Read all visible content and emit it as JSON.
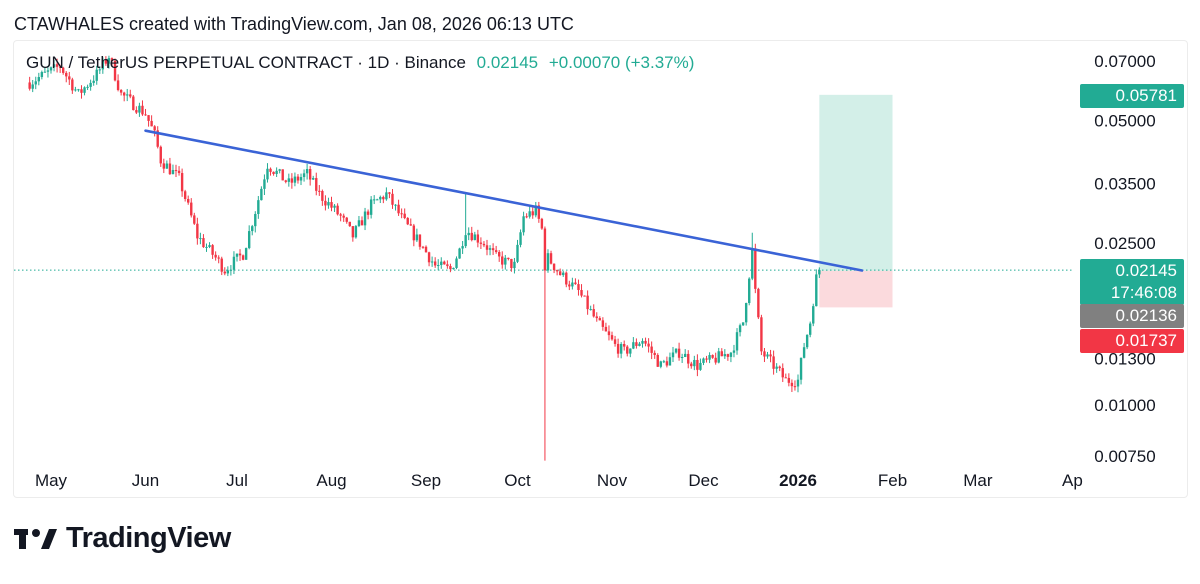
{
  "header": {
    "text": "CTAWHALES created with TradingView.com, Jan 08, 2026 06:13 UTC"
  },
  "symbol": {
    "title": "GUN / TetherUS PERPETUAL CONTRACT · 1D · Binance",
    "price": "0.02145",
    "change": "+0.00070 (+3.37%)"
  },
  "badges": {
    "target": "0.05781",
    "last_price": "0.02145",
    "countdown": "17:46:08",
    "entry": "0.02136",
    "stop": "0.01737"
  },
  "footer": {
    "brand": "TradingView"
  },
  "colors": {
    "up": "#22ab94",
    "down": "#f23645",
    "trendline": "#3a63d6",
    "profit_zone": "#d3efe8",
    "loss_zone": "#fbdadd",
    "entry_badge": "#808080"
  },
  "chart_data": {
    "type": "candlestick",
    "log_scale": true,
    "y_ticks": [
      "0.07000",
      "0.05000",
      "0.03500",
      "0.02500",
      "0.01300",
      "0.01000",
      "0.00750"
    ],
    "x_ticks": [
      "May",
      "Jun",
      "Jul",
      "Aug",
      "Sep",
      "Oct",
      "Nov",
      "Dec",
      "2026",
      "Feb",
      "Mar",
      "Ap"
    ],
    "x_tick_dates": [
      "2025-05-01",
      "2025-06-01",
      "2025-07-01",
      "2025-08-01",
      "2025-09-01",
      "2025-10-01",
      "2025-11-01",
      "2025-12-01",
      "2026-01-01",
      "2026-02-01",
      "2026-03-01",
      "2026-04-01"
    ],
    "close_path": [
      [
        "2025-04-24",
        0.062
      ],
      [
        "2025-05-04",
        0.068
      ],
      [
        "2025-05-10",
        0.058
      ],
      [
        "2025-05-16",
        0.065
      ],
      [
        "2025-05-20",
        0.072
      ],
      [
        "2025-05-24",
        0.058
      ],
      [
        "2025-06-01",
        0.052
      ],
      [
        "2025-06-04",
        0.046
      ],
      [
        "2025-06-06",
        0.04
      ],
      [
        "2025-06-12",
        0.036
      ],
      [
        "2025-06-18",
        0.026
      ],
      [
        "2025-06-24",
        0.023
      ],
      [
        "2025-06-27",
        0.0215
      ],
      [
        "2025-07-03",
        0.0235
      ],
      [
        "2025-07-07",
        0.03
      ],
      [
        "2025-07-11",
        0.039
      ],
      [
        "2025-07-18",
        0.035
      ],
      [
        "2025-07-24",
        0.037
      ],
      [
        "2025-07-28",
        0.033
      ],
      [
        "2025-08-04",
        0.029
      ],
      [
        "2025-08-08",
        0.026
      ],
      [
        "2025-08-14",
        0.031
      ],
      [
        "2025-08-19",
        0.033
      ],
      [
        "2025-08-25",
        0.028
      ],
      [
        "2025-08-30",
        0.025
      ],
      [
        "2025-09-04",
        0.022
      ],
      [
        "2025-09-09",
        0.0215
      ],
      [
        "2025-09-12",
        0.024
      ],
      [
        "2025-09-14",
        0.027
      ],
      [
        "2025-09-20",
        0.025
      ],
      [
        "2025-09-24",
        0.023
      ],
      [
        "2025-09-30",
        0.022
      ],
      [
        "2025-10-03",
        0.029
      ],
      [
        "2025-10-07",
        0.03
      ],
      [
        "2025-10-09",
        0.027
      ],
      [
        "2025-10-10",
        0.022
      ],
      [
        "2025-10-11",
        0.023
      ],
      [
        "2025-10-15",
        0.021
      ],
      [
        "2025-10-21",
        0.019
      ],
      [
        "2025-10-27",
        0.016
      ],
      [
        "2025-11-02",
        0.014
      ],
      [
        "2025-11-05",
        0.0135
      ],
      [
        "2025-11-11",
        0.0145
      ],
      [
        "2025-11-17",
        0.0125
      ],
      [
        "2025-11-23",
        0.0135
      ],
      [
        "2025-11-29",
        0.0125
      ],
      [
        "2025-12-05",
        0.013
      ],
      [
        "2025-12-10",
        0.0135
      ],
      [
        "2025-12-14",
        0.016
      ],
      [
        "2025-12-16",
        0.021
      ],
      [
        "2025-12-17",
        0.024
      ],
      [
        "2025-12-18",
        0.019
      ],
      [
        "2025-12-20",
        0.0135
      ],
      [
        "2025-12-24",
        0.0125
      ],
      [
        "2025-12-28",
        0.0115
      ],
      [
        "2026-01-01",
        0.0115
      ],
      [
        "2026-01-03",
        0.014
      ],
      [
        "2026-01-05",
        0.016
      ],
      [
        "2026-01-07",
        0.0205
      ],
      [
        "2026-01-08",
        0.02145
      ]
    ],
    "wick_extremes": [
      {
        "date": "2025-10-10",
        "low": 0.0073
      },
      {
        "date": "2025-12-17",
        "high": 0.0265
      },
      {
        "date": "2025-09-14",
        "high": 0.033
      }
    ],
    "trendline": {
      "from": [
        "2025-06-01",
        0.0472
      ],
      "to": [
        "2026-01-22",
        0.0214
      ]
    },
    "last_price_line": 0.02145,
    "position": {
      "type": "long",
      "start": "2026-01-08",
      "end": "2026-02-01",
      "entry": 0.02136,
      "target": 0.05781,
      "stop": 0.01737
    }
  }
}
